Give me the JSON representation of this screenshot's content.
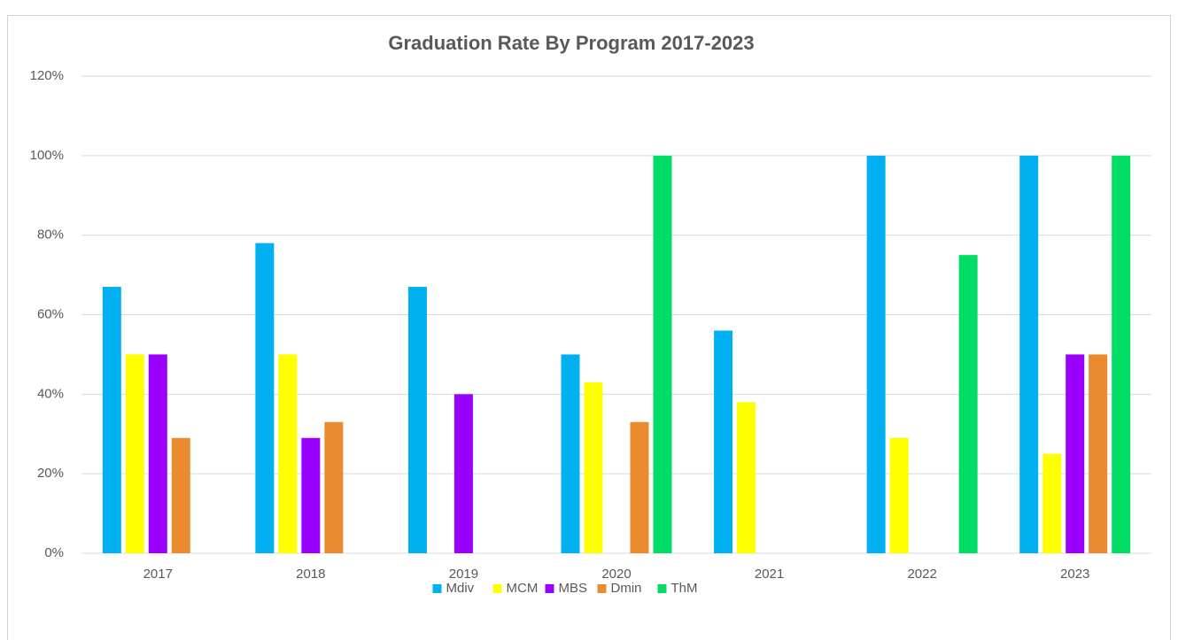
{
  "chart_data": {
    "type": "bar",
    "title": "Graduation Rate By Program 2017-2023",
    "categories": [
      "2017",
      "2018",
      "2019",
      "2020",
      "2021",
      "2022",
      "2023"
    ],
    "series": [
      {
        "name": "Mdiv",
        "color": "#00b0f0",
        "values": [
          67,
          78,
          67,
          50,
          56,
          100,
          100
        ]
      },
      {
        "name": "MCM",
        "color": "#ffff00",
        "values": [
          50,
          50,
          null,
          43,
          38,
          29,
          25
        ]
      },
      {
        "name": "MBS",
        "color": "#9900ff",
        "values": [
          50,
          29,
          40,
          null,
          null,
          null,
          50
        ]
      },
      {
        "name": "Dmin",
        "color": "#e98b2e",
        "values": [
          29,
          33,
          null,
          33,
          null,
          null,
          50
        ]
      },
      {
        "name": "ThM",
        "color": "#00dd66",
        "values": [
          null,
          null,
          null,
          100,
          null,
          75,
          100
        ]
      }
    ],
    "ylim": [
      0,
      120
    ],
    "yticks": [
      {
        "value": 0,
        "label": "0%"
      },
      {
        "value": 20,
        "label": "20%"
      },
      {
        "value": 40,
        "label": "40%"
      },
      {
        "value": 60,
        "label": "60%"
      },
      {
        "value": 80,
        "label": "80%"
      },
      {
        "value": 100,
        "label": "100%"
      },
      {
        "value": 120,
        "label": "120%"
      }
    ],
    "grid": true,
    "legend": "bottom"
  }
}
